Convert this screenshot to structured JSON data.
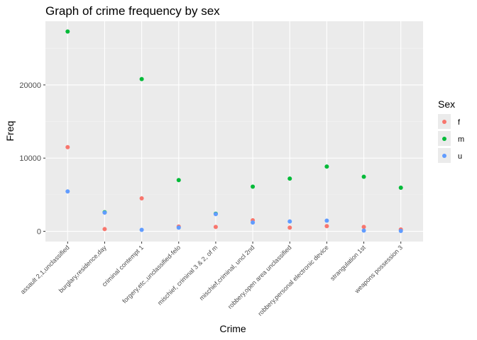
{
  "chart_data": {
    "type": "scatter",
    "title": "Graph of crime frequency by sex",
    "xlabel": "Crime",
    "ylabel": "Freq",
    "categories": [
      "assault 2,1,unclassified",
      "burglary,residence,day",
      "criminal contempt 1",
      "forgery,etc.,unclassified-felo",
      "mischief, criminal 3 & 2, of m",
      "mischief,criminal,    uncl 2nd",
      "robbery,open area unclassified",
      "robbery,personal electronic device",
      "strangulation 1st",
      "weapons possession 3"
    ],
    "ylim": [
      -1400,
      28700
    ],
    "y_ticks": [
      0,
      10000,
      20000
    ],
    "y_tick_labels": [
      "0",
      "10000",
      "20000"
    ],
    "grid": true,
    "legend": {
      "title": "Sex",
      "position": "right"
    },
    "series": [
      {
        "name": "f",
        "color": "#F8766D",
        "values": [
          11500,
          300,
          4500,
          650,
          600,
          1500,
          500,
          700,
          600,
          250
        ]
      },
      {
        "name": "m",
        "color": "#00BA38",
        "values": [
          27300,
          2600,
          20800,
          7000,
          2400,
          6100,
          7200,
          8850,
          7450,
          5950
        ]
      },
      {
        "name": "u",
        "color": "#619CFF",
        "values": [
          5450,
          2550,
          200,
          500,
          2350,
          1200,
          1350,
          1450,
          100,
          50
        ]
      }
    ]
  }
}
